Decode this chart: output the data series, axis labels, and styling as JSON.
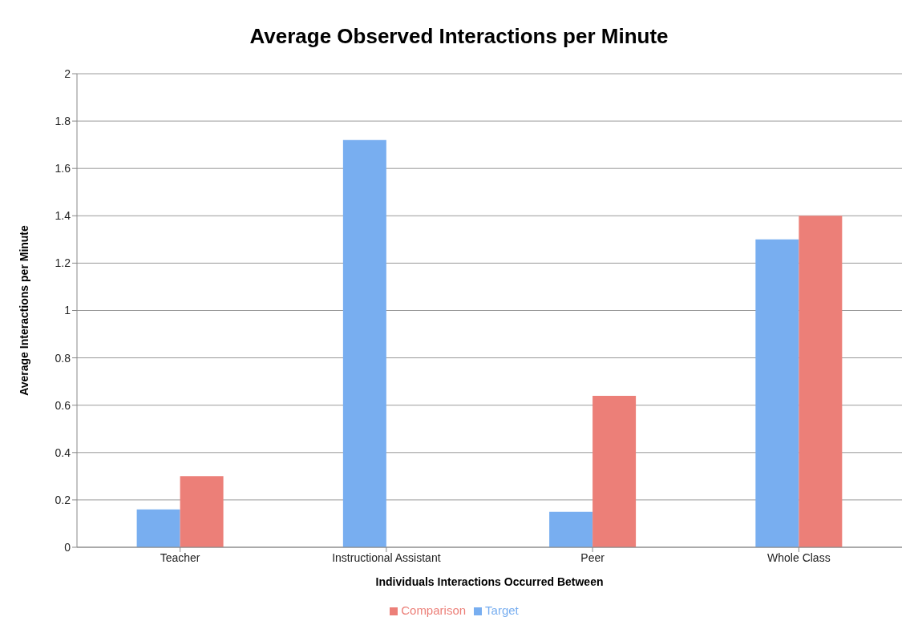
{
  "chart_data": {
    "type": "bar",
    "title": "Average Observed Interactions per Minute",
    "xlabel": "Individuals Interactions Occurred Between",
    "ylabel": "Average Interactions per Minute",
    "categories": [
      "Teacher",
      "Instructional Assistant",
      "Peer",
      "Whole Class"
    ],
    "series": [
      {
        "name": "Target",
        "color": "#78aef0",
        "values": [
          0.16,
          1.72,
          0.15,
          1.3
        ]
      },
      {
        "name": "Comparison",
        "color": "#ec7f78",
        "values": [
          0.3,
          0,
          0.64,
          1.4
        ]
      }
    ],
    "ylim": [
      0,
      2
    ],
    "yticks": [
      0,
      0.2,
      0.4,
      0.6,
      0.8,
      1,
      1.2,
      1.4,
      1.6,
      1.8,
      2
    ],
    "grid": "y",
    "legend": "bottom"
  }
}
